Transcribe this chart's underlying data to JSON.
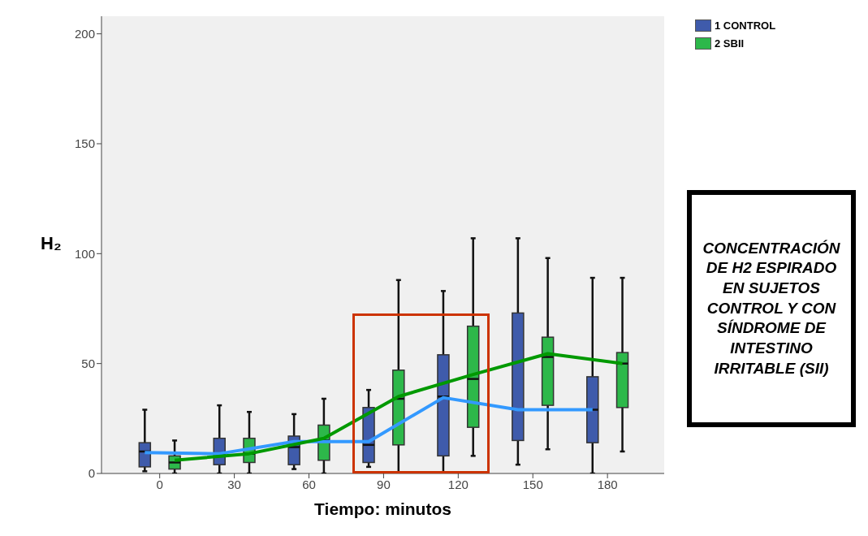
{
  "chart_data": {
    "type": "box",
    "ylabel": "H₂",
    "xlabel": "Tiempo: minutos",
    "categories": [
      "0",
      "30",
      "60",
      "90",
      "120",
      "150",
      "180"
    ],
    "ylim": [
      0,
      208
    ],
    "yticks": [
      0,
      50,
      100,
      150,
      200
    ],
    "legend": "top right",
    "series": [
      {
        "name": "1 CONTROL",
        "color": "#3f5bab",
        "boxes": [
          {
            "low": 1,
            "q1": 3,
            "median": 10,
            "q3": 14,
            "high": 29
          },
          {
            "low": 0,
            "q1": 4,
            "median": 9,
            "q3": 16,
            "high": 31
          },
          {
            "low": 2,
            "q1": 4,
            "median": 12,
            "q3": 17,
            "high": 27
          },
          {
            "low": 3,
            "q1": 5,
            "median": 13,
            "q3": 30,
            "high": 38
          },
          {
            "low": 0,
            "q1": 8,
            "median": 35,
            "q3": 54,
            "high": 83
          },
          {
            "low": 4,
            "q1": 15,
            "median": 29,
            "q3": 73,
            "high": 107
          },
          {
            "low": 0,
            "q1": 14,
            "median": 29,
            "q3": 44,
            "high": 89
          }
        ]
      },
      {
        "name": "2 SBII",
        "color": "#2db84a",
        "boxes": [
          {
            "low": 0,
            "q1": 2,
            "median": 5,
            "q3": 8,
            "high": 15
          },
          {
            "low": 0,
            "q1": 5,
            "median": 9,
            "q3": 16,
            "high": 28
          },
          {
            "low": 0,
            "q1": 6,
            "median": 15,
            "q3": 22,
            "high": 34
          },
          {
            "low": 0,
            "q1": 13,
            "median": 34,
            "q3": 47,
            "high": 88
          },
          {
            "low": 8,
            "q1": 21,
            "median": 43,
            "q3": 67,
            "high": 107
          },
          {
            "low": 11,
            "q1": 31,
            "median": 53,
            "q3": 62,
            "high": 98
          },
          {
            "low": 10,
            "q1": 30,
            "median": 50,
            "q3": 55,
            "high": 89
          }
        ]
      },
      {
        "type": "line",
        "color": "#3399ff",
        "values": [
          9.5,
          9,
          14.5,
          14.5,
          34.5,
          29,
          29
        ]
      },
      {
        "type": "line",
        "color": "#009900",
        "values": [
          6,
          9,
          16,
          35,
          45,
          54.5,
          50
        ]
      }
    ],
    "annotations": [
      "CONCENTRACIÓN DE H2 ESPIRADO EN SUJETOS CONTROL Y CON SÍNDROME DE INTESTINO IRRITABLE (SII)"
    ]
  }
}
